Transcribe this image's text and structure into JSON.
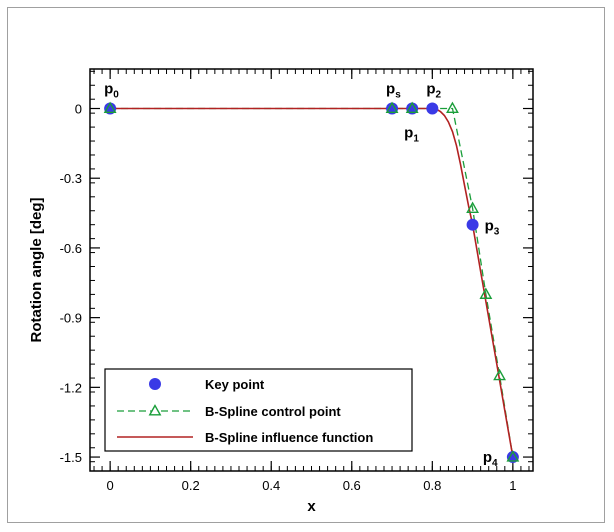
{
  "chart_data": {
    "type": "line",
    "title": "",
    "xlabel": "x",
    "ylabel": "Rotation angle [deg]",
    "xlim": [
      -0.05,
      1.05
    ],
    "ylim": [
      -1.56,
      0.17
    ],
    "xticks": [
      0,
      0.2,
      0.4,
      0.6,
      0.8,
      1
    ],
    "xtick_labels": [
      "0",
      "0.2",
      "0.4",
      "0.6",
      "0.8",
      "1"
    ],
    "yticks": [
      0,
      -0.3,
      -0.6,
      -0.9,
      -1.2,
      -1.5
    ],
    "ytick_labels": [
      "0",
      "-0.3",
      "-0.6",
      "-0.9",
      "-1.2",
      "-1.5"
    ],
    "grid": false,
    "legend_position": "bottom-left",
    "series": [
      {
        "name": "Key point",
        "style": "markers",
        "marker": "circle",
        "color": "#3a3ae6",
        "x": [
          0,
          0.7,
          0.75,
          0.8,
          0.9,
          1.0
        ],
        "y": [
          0,
          0,
          0,
          0,
          -0.5,
          -1.5
        ]
      },
      {
        "name": "B-Spline control point",
        "style": "dashed-line-markers",
        "marker": "triangle",
        "color": "#1a9e3a",
        "x": [
          0,
          0.7,
          0.75,
          0.85,
          0.9,
          0.933,
          0.967,
          1.0
        ],
        "y": [
          0,
          0,
          0,
          0,
          -0.43,
          -0.8,
          -1.15,
          -1.5
        ]
      },
      {
        "name": "B-Spline influence function",
        "style": "line",
        "color": "#b22222",
        "x": [
          0,
          0.7,
          0.75,
          0.8,
          0.81,
          0.82,
          0.83,
          0.84,
          0.85,
          0.86,
          0.87,
          0.88,
          0.89,
          0.9,
          0.92,
          0.94,
          0.96,
          0.98,
          1.0
        ],
        "y": [
          0,
          0,
          0,
          0,
          -0.003,
          -0.013,
          -0.03,
          -0.058,
          -0.1,
          -0.16,
          -0.24,
          -0.33,
          -0.42,
          -0.5,
          -0.7,
          -0.9,
          -1.1,
          -1.3,
          -1.5
        ]
      }
    ],
    "annotations": [
      {
        "name": "p0",
        "base": "p",
        "sub": "0",
        "x": 0,
        "y": 0,
        "pos": "above"
      },
      {
        "name": "ps",
        "base": "p",
        "sub": "s",
        "x": 0.7,
        "y": 0,
        "pos": "above"
      },
      {
        "name": "p1",
        "base": "p",
        "sub": "1",
        "x": 0.75,
        "y": 0,
        "pos": "below"
      },
      {
        "name": "p2",
        "base": "p",
        "sub": "2",
        "x": 0.8,
        "y": 0,
        "pos": "above"
      },
      {
        "name": "p3",
        "base": "p",
        "sub": "3",
        "x": 0.9,
        "y": -0.5,
        "pos": "right"
      },
      {
        "name": "p4",
        "base": "p",
        "sub": "4",
        "x": 1.0,
        "y": -1.5,
        "pos": "left"
      }
    ]
  }
}
